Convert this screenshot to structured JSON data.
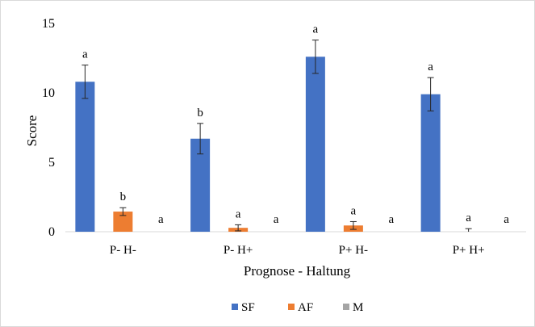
{
  "chart_data": {
    "type": "bar",
    "xlabel": "Prognose - Haltung",
    "ylabel": "Score",
    "ylim": [
      0,
      15
    ],
    "yticks": [
      0,
      5,
      10,
      15
    ],
    "grid": false,
    "legend_position": "bottom",
    "categories": [
      "P- H-",
      "P- H+",
      "P+ H-",
      "P+ H+"
    ],
    "series": [
      {
        "name": "SF",
        "color": "#4472c4",
        "values": [
          10.8,
          6.7,
          12.6,
          9.9
        ],
        "errors": [
          1.2,
          1.1,
          1.2,
          1.2
        ],
        "significance": [
          "a",
          "b",
          "a",
          "a"
        ]
      },
      {
        "name": "AF",
        "color": "#ed7d31",
        "values": [
          1.45,
          0.28,
          0.45,
          0.0
        ],
        "errors": [
          0.28,
          0.22,
          0.28,
          0.22
        ],
        "significance": [
          "b",
          "a",
          "a",
          "a"
        ]
      },
      {
        "name": "M",
        "color": "#a5a5a5",
        "values": [
          0,
          0,
          0,
          0
        ],
        "errors": [
          0,
          0,
          0,
          0
        ],
        "significance": [
          "a",
          "a",
          "a",
          "a"
        ]
      }
    ]
  }
}
